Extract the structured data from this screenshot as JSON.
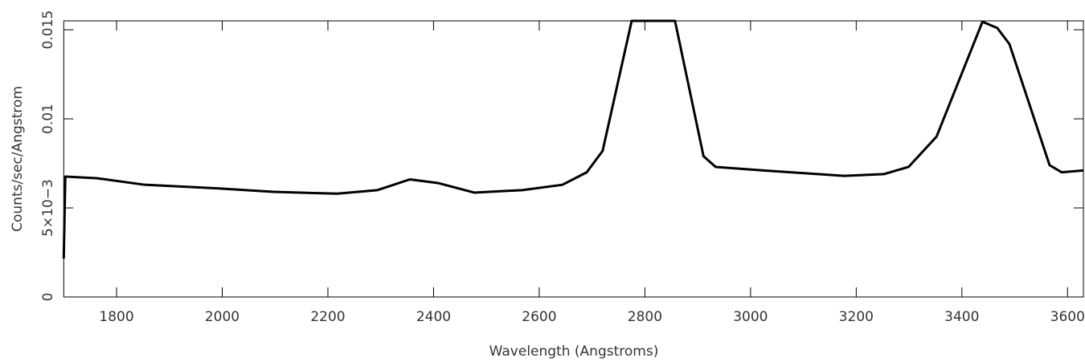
{
  "chart_data": {
    "type": "line",
    "xlabel": "Wavelength (Angstroms)",
    "ylabel": "Counts/sec/Angstrom",
    "xlim": [
      1700,
      3630
    ],
    "ylim": [
      0,
      0.0155
    ],
    "xticks": [
      1800,
      2000,
      2200,
      2400,
      2600,
      2800,
      3000,
      3200,
      3400,
      3600
    ],
    "yticks": [
      0,
      {
        "value": 0.005,
        "label": "5×10−3"
      },
      0.01,
      0.015
    ],
    "series": [
      {
        "color": "#000000",
        "x": [
          1700,
          1703,
          1762,
          1853,
          1990,
          2097,
          2218,
          2294,
          2355,
          2408,
          2477,
          2568,
          2644,
          2690,
          2720,
          2775,
          2857,
          2911,
          2934,
          3025,
          3177,
          3253,
          3299,
          3352,
          3439,
          3467,
          3490,
          3566,
          3589,
          3630
        ],
        "values": [
          0.00216,
          0.00676,
          0.00667,
          0.0063,
          0.0061,
          0.0059,
          0.0058,
          0.006,
          0.0066,
          0.0064,
          0.00586,
          0.006,
          0.0063,
          0.007,
          0.0082,
          0.0155,
          0.0155,
          0.0079,
          0.0073,
          0.0071,
          0.0068,
          0.0069,
          0.0073,
          0.009,
          0.01545,
          0.0151,
          0.0142,
          0.0074,
          0.007,
          0.0071
        ]
      }
    ]
  }
}
